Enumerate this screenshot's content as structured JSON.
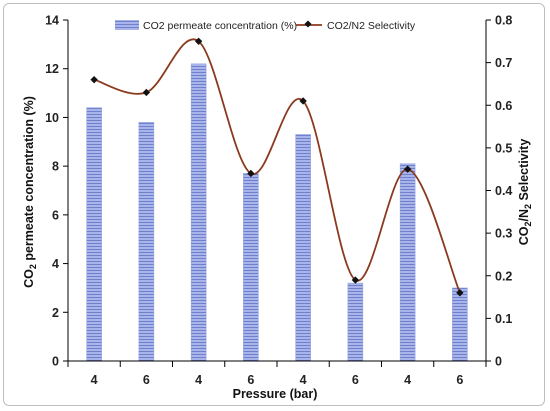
{
  "chart_data": {
    "type": "bar",
    "categories": [
      "4",
      "6",
      "4",
      "6",
      "4",
      "6",
      "4",
      "6"
    ],
    "xlabel": "Pressure (bar)",
    "ylabel": {
      "prefix": "CO",
      "sub": "2",
      "suffix": " permeate concentration (%)"
    },
    "y2label": {
      "p1": "CO",
      "s1": "2",
      "p2": "/N",
      "s2": "2",
      "p3": " Selectivity"
    },
    "ylim": [
      0,
      14
    ],
    "y2lim": [
      0,
      0.8
    ],
    "yticks": [
      "0",
      "2",
      "4",
      "6",
      "8",
      "10",
      "12",
      "14"
    ],
    "y2ticks": [
      "0",
      "0.1",
      "0.2",
      "0.3",
      "0.4",
      "0.5",
      "0.6",
      "0.7",
      "0.8"
    ],
    "series": [
      {
        "name": "CO2 permeate concentration (%)",
        "type": "bar",
        "axis": "left",
        "values": [
          10.4,
          9.8,
          12.2,
          7.7,
          9.3,
          3.2,
          8.1,
          3.0
        ]
      },
      {
        "name": "CO2/N2 Selectivity",
        "type": "line",
        "axis": "right",
        "values": [
          0.66,
          0.63,
          0.75,
          0.44,
          0.61,
          0.19,
          0.45,
          0.16
        ]
      }
    ],
    "colors": {
      "bar": "#8f9fe0",
      "bar_stripe": "#6f80cc",
      "line": "#8b3a1e",
      "marker": "#111111"
    },
    "grid": false,
    "legend_position": "top"
  }
}
